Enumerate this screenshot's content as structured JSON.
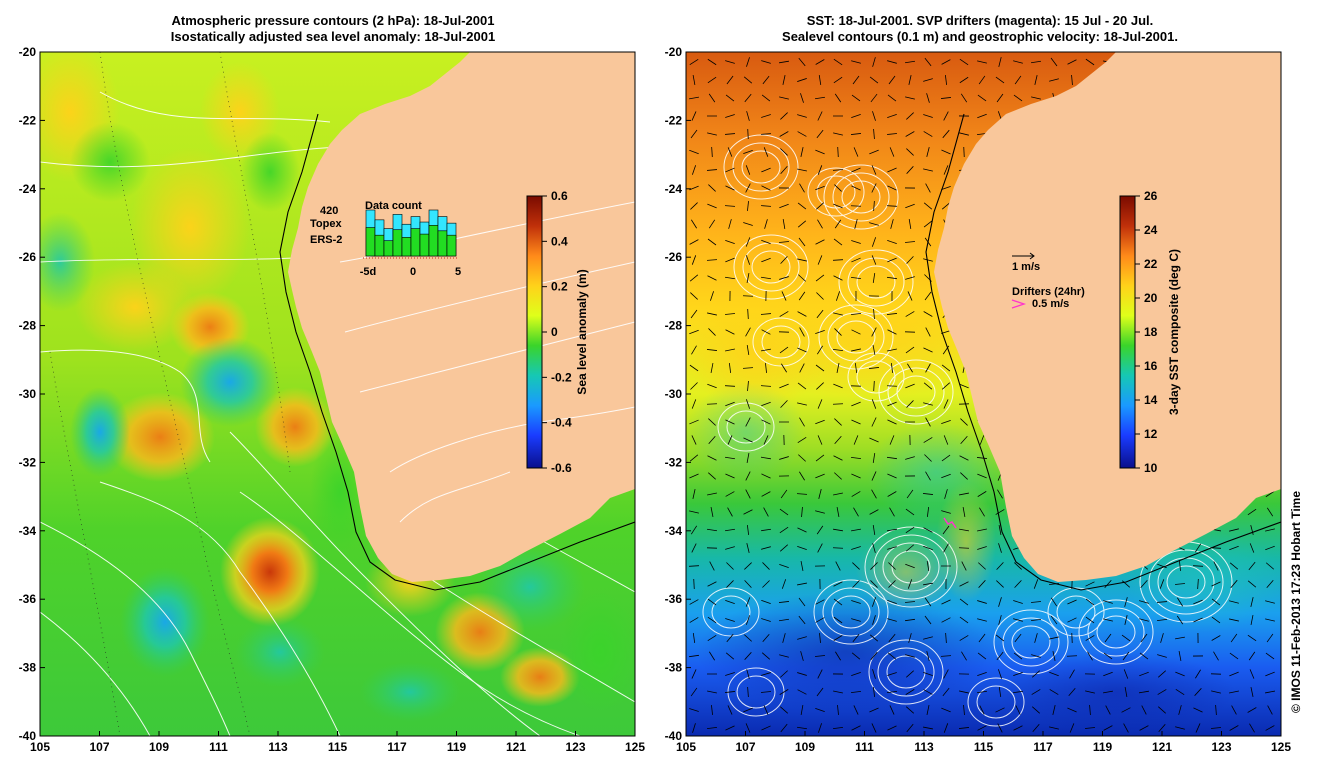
{
  "left_panel": {
    "title_line1": "Atmospheric pressure contours (2 hPa): 18-Jul-2001",
    "title_line2": "Isostatically adjusted sea level anomaly: 18-Jul-2001",
    "colorbar": {
      "label": "Sea level anomaly (m)",
      "ticks": [
        "0.6",
        "0.4",
        "0.2",
        "0",
        "-0.2",
        "-0.4",
        "-0.6"
      ],
      "stops": [
        "#7a0b00",
        "#c0300a",
        "#ff8a1a",
        "#ffd21a",
        "#dfff1a",
        "#3ad42a",
        "#16c8b4",
        "#1a9aff",
        "#1a3cff",
        "#0a0f8c"
      ]
    },
    "data_count": {
      "title": "Data count",
      "max": "420",
      "topex_label": "Topex",
      "ers_label": "ERS-2",
      "x_ticks": [
        "-5d",
        "0",
        "5"
      ],
      "topex_color": "#33e6ff",
      "ers_color": "#22dd22",
      "topex_values": [
        420,
        330,
        250,
        380,
        290,
        360,
        310,
        420,
        360,
        300
      ],
      "ers_values": [
        260,
        190,
        140,
        240,
        170,
        250,
        200,
        280,
        230,
        190
      ]
    }
  },
  "right_panel": {
    "title_line1": "SST: 18-Jul-2001. SVP drifters (magenta): 15 Jul - 20 Jul.",
    "title_line2": "Sealevel contours (0.1 m) and geostrophic velocity: 18-Jul-2001.",
    "colorbar": {
      "label": "3-day SST composite (deg C)",
      "ticks": [
        "26",
        "24",
        "22",
        "20",
        "18",
        "16",
        "14",
        "12",
        "10"
      ],
      "stops": [
        "#7a0b00",
        "#c0300a",
        "#ff8a1a",
        "#ffd21a",
        "#dfff1a",
        "#3ad42a",
        "#16c8b4",
        "#1a9aff",
        "#1a3cff",
        "#0a0f8c"
      ]
    },
    "velocity_legend": "1 m/s",
    "drifters_title": "Drifters (24hr)",
    "drifters_speed": "0.5 m/s",
    "drifter_color": "#ff33cc"
  },
  "map": {
    "lon_ticks": [
      "105",
      "107",
      "109",
      "111",
      "113",
      "115",
      "117",
      "119",
      "121",
      "123",
      "125"
    ],
    "lat_ticks": [
      "-20",
      "-22",
      "-24",
      "-26",
      "-28",
      "-30",
      "-32",
      "-34",
      "-36",
      "-38",
      "-40"
    ],
    "land_color": "#f9c79b"
  },
  "credit": "© IMOS 11-Feb-2013 17:23 Hobart Time"
}
